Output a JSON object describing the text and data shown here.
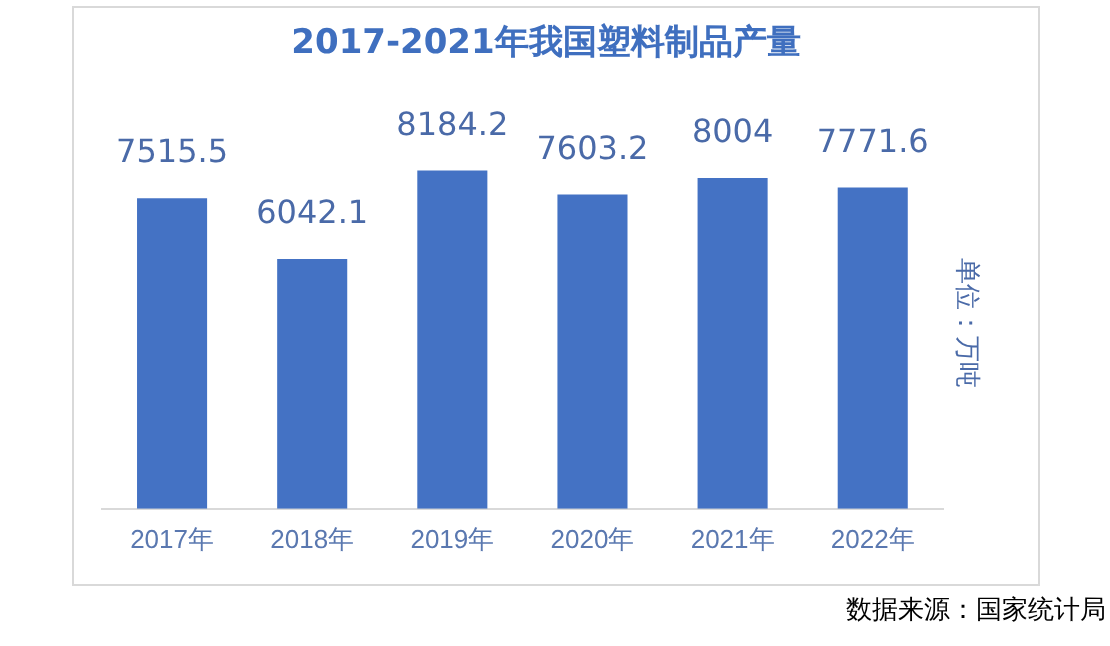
{
  "chart_data": {
    "type": "bar",
    "title": "2017-2021年我国塑料制品产量",
    "categories": [
      "2017年",
      "2018年",
      "2019年",
      "2020年",
      "2021年",
      "2022年"
    ],
    "values": [
      7515.5,
      6042.1,
      8184.2,
      7603.2,
      8004,
      7771.6
    ],
    "color": "#4472c4",
    "data_labels": true,
    "ylabel": "单位：万吨",
    "tick_labels": "x",
    "grid": false,
    "legend": false,
    "annotations": [
      "数据来源：国家统计局"
    ]
  }
}
